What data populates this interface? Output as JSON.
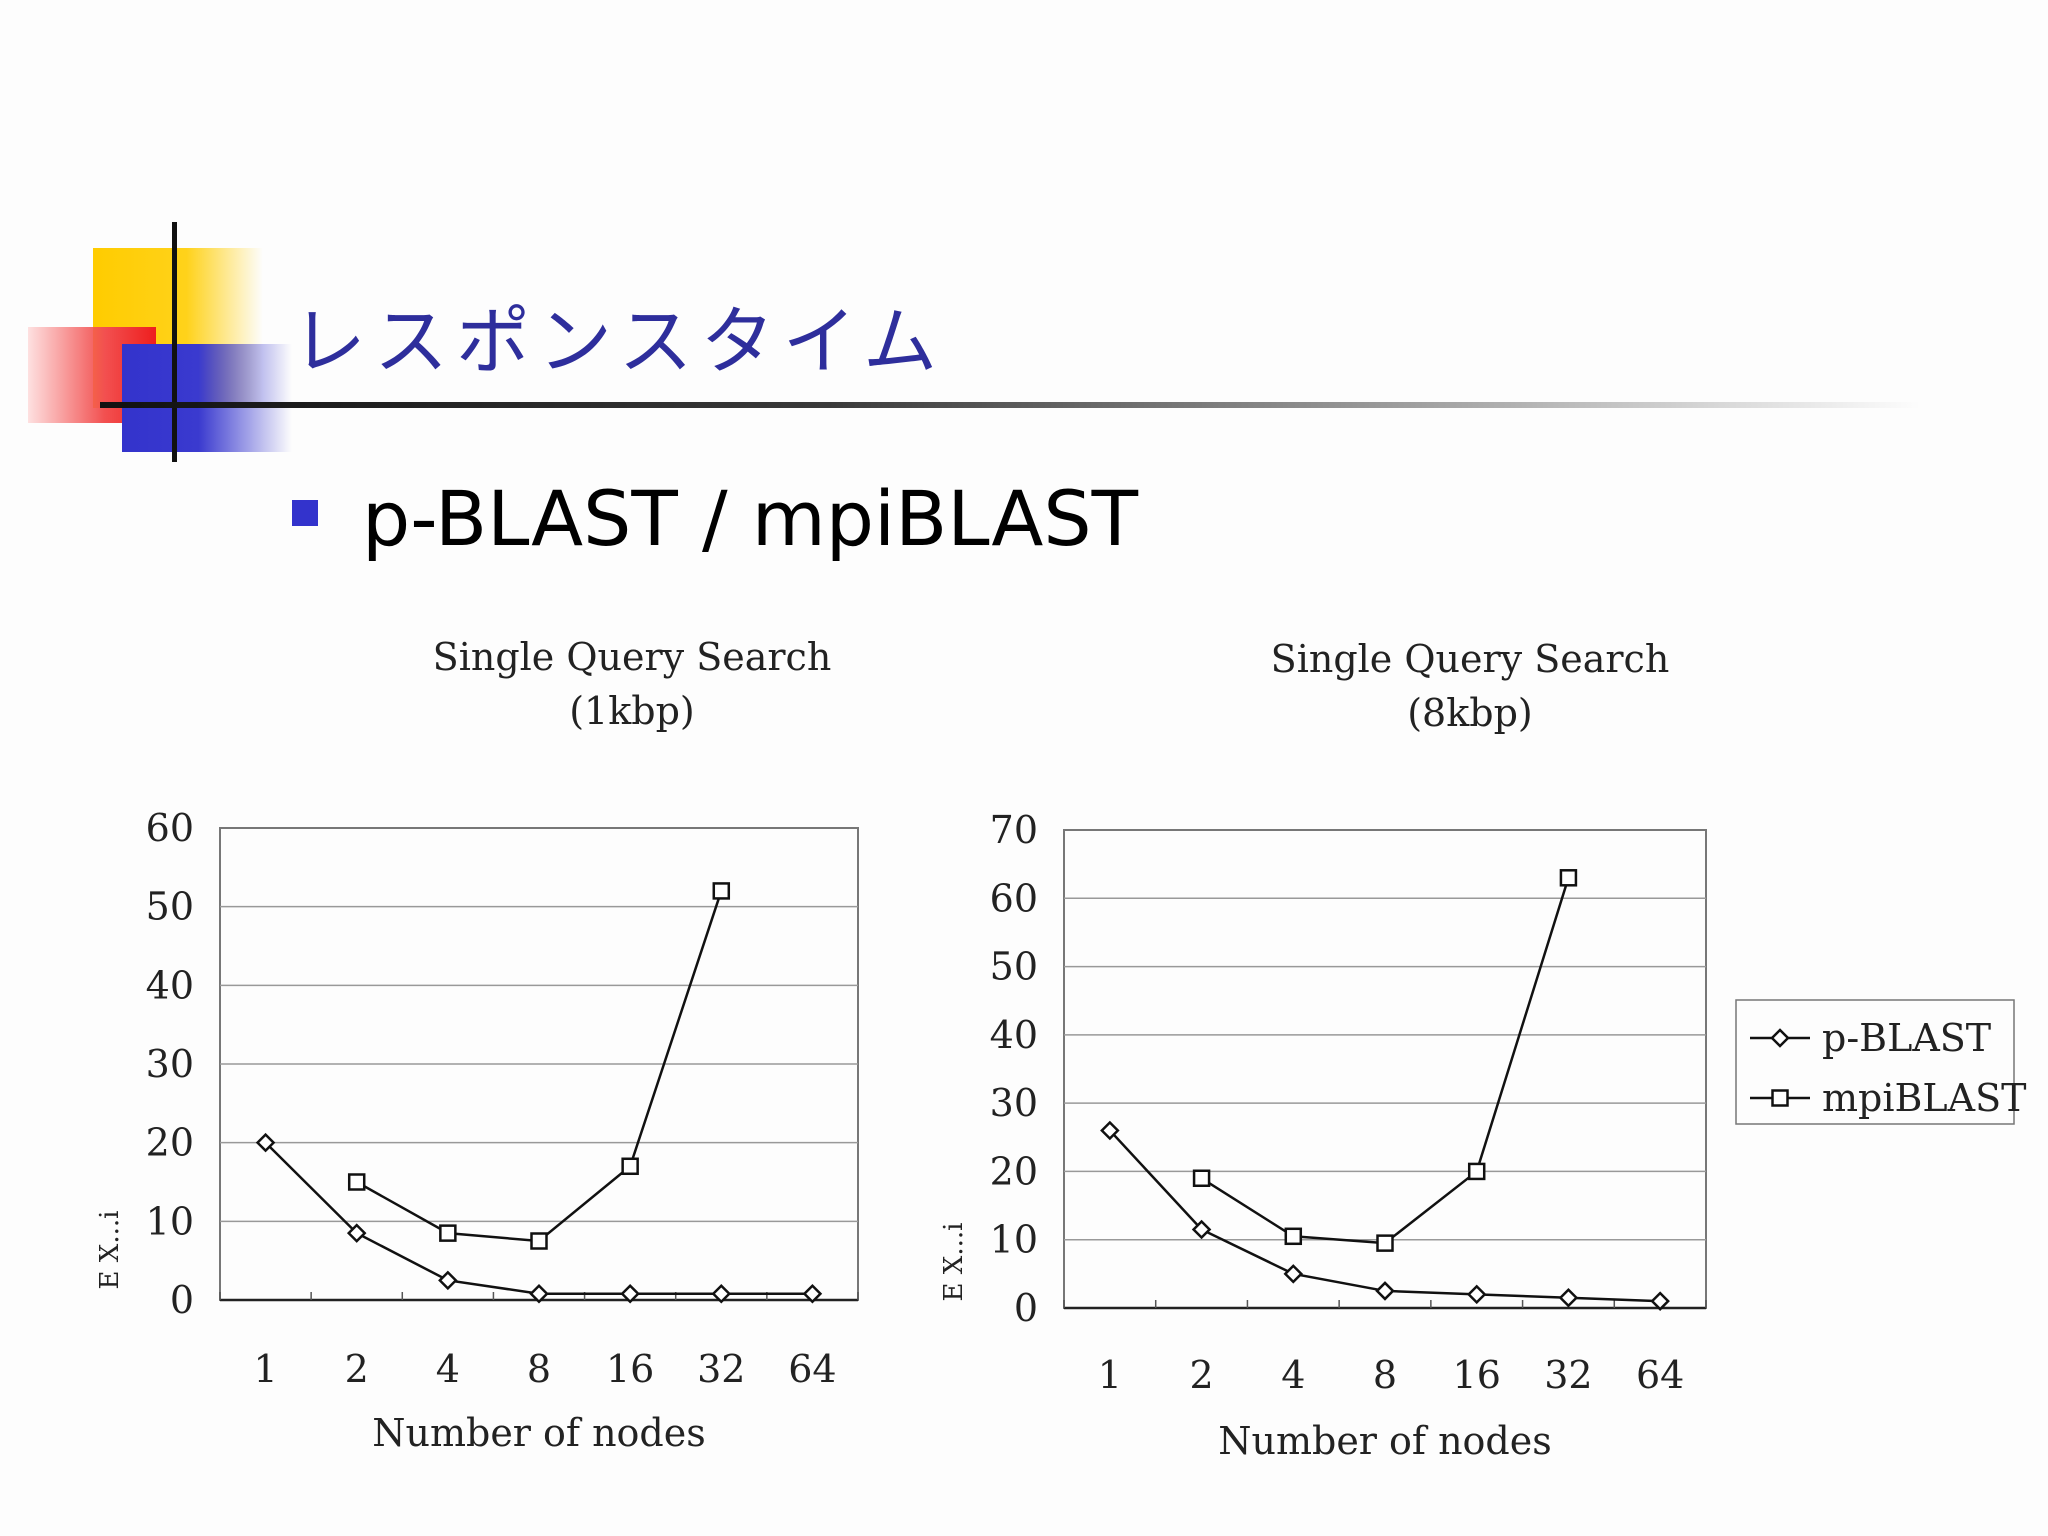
{
  "slide": {
    "title": "レスポンスタイム",
    "bullet": "p-BLAST / mpiBLAST"
  },
  "colors": {
    "title": "#2e2e9c",
    "bullet": "#3333cc",
    "deco_yellow": "#ffcc00",
    "deco_red": "#ee1e1e",
    "deco_blue": "#3333cc"
  },
  "chart_data": [
    {
      "type": "line",
      "title": "Single Query Search",
      "subtitle": "(1kbp)",
      "xlabel": "Number of nodes",
      "ylabel": "E X...i",
      "categories": [
        "1",
        "2",
        "4",
        "8",
        "16",
        "32",
        "64"
      ],
      "ylim": [
        0,
        60
      ],
      "yticks": [
        0,
        10,
        20,
        30,
        40,
        50,
        60
      ],
      "grid": true,
      "series": [
        {
          "name": "p-BLAST",
          "marker": "diamond",
          "values": [
            20,
            8.5,
            2.5,
            0.8,
            0.8,
            0.8,
            0.8
          ]
        },
        {
          "name": "mpiBLAST",
          "marker": "square",
          "values": [
            null,
            15,
            8.5,
            7.5,
            17,
            52,
            null
          ]
        }
      ]
    },
    {
      "type": "line",
      "title": "Single Query Search",
      "subtitle": "(8kbp)",
      "xlabel": "Number of nodes",
      "ylabel": "E X...i",
      "categories": [
        "1",
        "2",
        "4",
        "8",
        "16",
        "32",
        "64"
      ],
      "ylim": [
        0,
        70
      ],
      "yticks": [
        0,
        10,
        20,
        30,
        40,
        50,
        60,
        70
      ],
      "grid": true,
      "legend": "right",
      "series": [
        {
          "name": "p-BLAST",
          "marker": "diamond",
          "values": [
            26,
            11.5,
            5,
            2.5,
            2,
            1.5,
            1
          ]
        },
        {
          "name": "mpiBLAST",
          "marker": "square",
          "values": [
            null,
            19,
            10.5,
            9.5,
            20,
            63,
            null
          ]
        }
      ]
    }
  ]
}
